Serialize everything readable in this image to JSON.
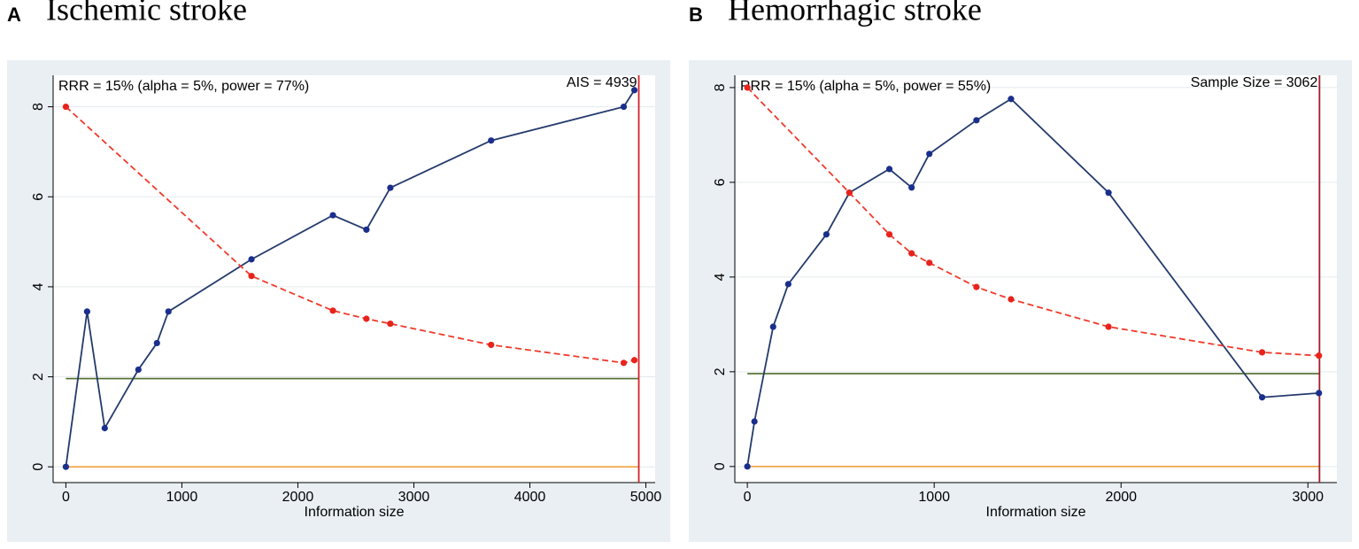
{
  "chart_data": [
    {
      "type": "line",
      "panel_label": "A",
      "title": "Ischemic stroke",
      "xlabel": "Information size",
      "annotation": "RRR = 15% (alpha = 5%, power = 77%)",
      "xlim": [
        -110,
        5080
      ],
      "ylim": [
        -0.35,
        8.7
      ],
      "xticks": [
        0,
        1000,
        2000,
        3000,
        4000,
        5000
      ],
      "yticks": [
        0,
        2,
        4,
        6,
        8
      ],
      "grid": true,
      "series": [
        {
          "color": "#1a2f8c",
          "line_color": "#233a6b",
          "style": "solid",
          "x": [
            0,
            183,
            335,
            625,
            785,
            884,
            1600,
            2302,
            2591,
            2797,
            3666,
            4809,
            4901
          ],
          "values": [
            0,
            3.45,
            0.86,
            2.16,
            2.75,
            3.45,
            4.61,
            5.59,
            5.27,
            6.2,
            7.25,
            8.0,
            8.37
          ]
        },
        {
          "color": "#e8231c",
          "line_color": "#ef3a2a",
          "style": "dashed",
          "x": [
            0,
            1600,
            2302,
            2591,
            2797,
            3666,
            4809,
            4901
          ],
          "values": [
            8,
            4.24,
            3.47,
            3.29,
            3.18,
            2.71,
            2.31,
            2.37
          ]
        }
      ],
      "hlines": [
        {
          "value": 1.96,
          "color": "#4f6b2a"
        },
        {
          "value": 0,
          "color": "#f0a040"
        }
      ],
      "vline": {
        "value": 4939,
        "label": "AIS = 4939",
        "color": "#d2232a"
      }
    },
    {
      "type": "line",
      "panel_label": "B",
      "title": "Hemorrhagic stroke",
      "xlabel": "Information size",
      "annotation": "RRR = 15% (alpha = 5%, power = 55%)",
      "xlim": [
        -67,
        3155
      ],
      "ylim": [
        -0.34,
        8.26
      ],
      "xticks": [
        0,
        1000,
        2000,
        3000
      ],
      "yticks": [
        0,
        2,
        4,
        6,
        8
      ],
      "grid": true,
      "series": [
        {
          "color": "#1a2f8c",
          "line_color": "#233a6b",
          "style": "solid",
          "x": [
            0,
            38,
            138,
            219,
            423,
            546,
            760,
            879,
            974,
            1226,
            1411,
            1933,
            2755,
            3059
          ],
          "values": [
            0,
            0.95,
            2.95,
            3.85,
            4.9,
            5.78,
            6.28,
            5.89,
            6.6,
            7.31,
            7.76,
            5.78,
            1.46,
            1.55
          ]
        },
        {
          "color": "#e8231c",
          "line_color": "#ef3a2a",
          "style": "dashed",
          "x": [
            0,
            546,
            760,
            879,
            974,
            1226,
            1411,
            1933,
            2755,
            3059
          ],
          "values": [
            8,
            5.78,
            4.9,
            4.5,
            4.3,
            3.79,
            3.53,
            2.95,
            2.41,
            2.34
          ]
        }
      ],
      "hlines": [
        {
          "value": 1.96,
          "color": "#4f6b2a"
        },
        {
          "value": 0,
          "color": "#f0a040"
        }
      ],
      "vline": {
        "value": 3062,
        "label": "Sample Size = 3062",
        "color": "#a01c2a"
      }
    }
  ]
}
